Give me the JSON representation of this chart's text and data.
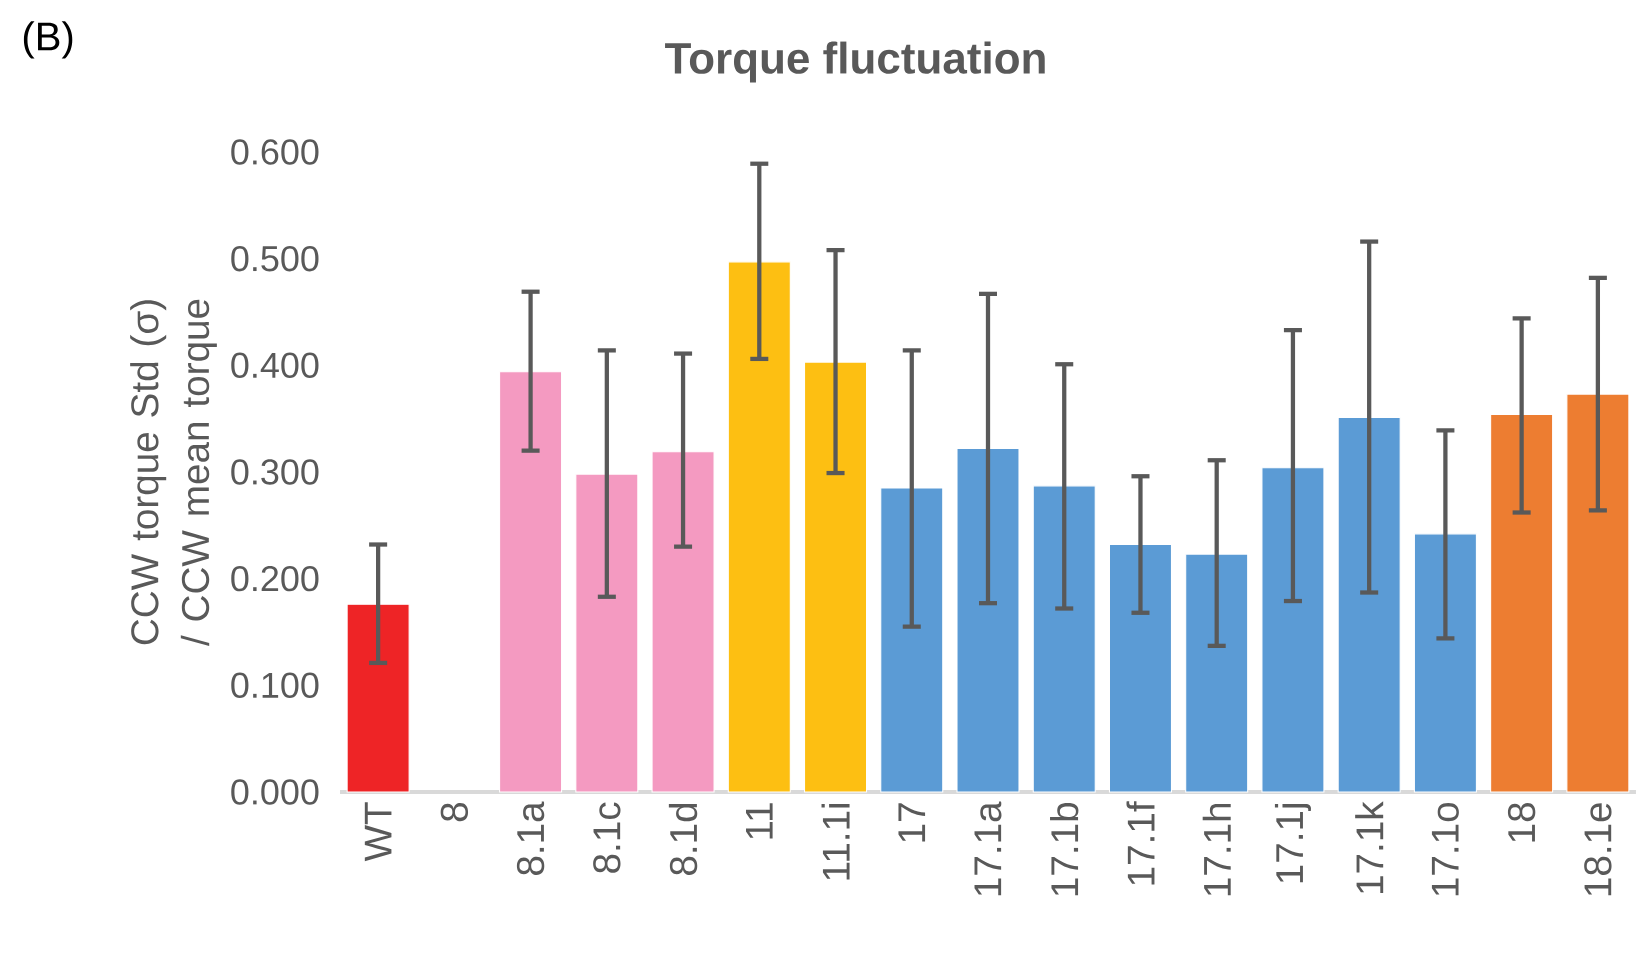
{
  "chart_data": {
    "type": "bar",
    "title": "Torque fluctuation",
    "ylabel": "CCW torque Std (σ) / CCW mean torque",
    "annotations": [
      "(B)"
    ],
    "categories": [
      "WT",
      "8",
      "8.1a",
      "8.1c",
      "8.1d",
      "11",
      "11.1i",
      "17",
      "17.1a",
      "17.1b",
      "17.1f",
      "17.1h",
      "17.1j",
      "17.1k",
      "17.1o",
      "18",
      "18.1e"
    ],
    "values": [
      0.176,
      null,
      0.394,
      0.298,
      0.319,
      0.497,
      0.403,
      0.285,
      0.322,
      0.287,
      0.232,
      0.223,
      0.304,
      0.351,
      0.242,
      0.354,
      0.373
    ],
    "colors": [
      "#ee2426",
      "#f49ac1",
      "#f49ac1",
      "#f49ac1",
      "#f49ac1",
      "#fdbf12",
      "#fdbf12",
      "#5b9bd5",
      "#5b9bd5",
      "#5b9bd5",
      "#5b9bd5",
      "#5b9bd5",
      "#5b9bd5",
      "#5b9bd5",
      "#5b9bd5",
      "#ed7d31",
      "#ed7d31"
    ],
    "errors": [
      [
        0.121,
        0.232
      ],
      null,
      [
        0.32,
        0.469
      ],
      [
        0.183,
        0.414
      ],
      [
        0.23,
        0.411
      ],
      [
        0.406,
        0.589
      ],
      [
        0.299,
        0.508
      ],
      [
        0.155,
        0.414
      ],
      [
        0.177,
        0.467
      ],
      [
        0.172,
        0.401
      ],
      [
        0.168,
        0.296
      ],
      [
        0.137,
        0.311
      ],
      [
        0.179,
        0.433
      ],
      [
        0.187,
        0.516
      ],
      [
        0.144,
        0.339
      ],
      [
        0.262,
        0.444
      ],
      [
        0.264,
        0.482
      ]
    ],
    "ylim": [
      0,
      0.6
    ],
    "yticks": [
      {
        "value": 0,
        "label": "0.000"
      },
      {
        "value": 0.1,
        "label": "0.100"
      },
      {
        "value": 0.2,
        "label": "0.200"
      },
      {
        "value": 0.3,
        "label": "0.300"
      },
      {
        "value": 0.4,
        "label": "0.400"
      },
      {
        "value": 0.5,
        "label": "0.500"
      },
      {
        "value": 0.6,
        "label": "0.600"
      }
    ],
    "grid": false
  }
}
